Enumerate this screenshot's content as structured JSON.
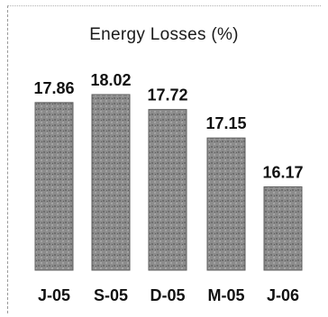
{
  "chart_data": {
    "type": "bar",
    "title": "Energy Losses (%)",
    "categories": [
      "J-05",
      "S-05",
      "D-05",
      "M-05",
      "J-06"
    ],
    "values": [
      17.86,
      18.02,
      17.72,
      17.15,
      16.17
    ],
    "value_labels": [
      "17.86",
      "18.02",
      "17.72",
      "17.15",
      "16.17"
    ],
    "xlabel": "",
    "ylabel": "",
    "ylim": [
      14.5,
      18.02
    ],
    "grid": false,
    "legend": "none",
    "colors": {
      "bar": "#8a8a8a",
      "bar_dark": "#5c5c5c",
      "text": "#111111"
    }
  }
}
